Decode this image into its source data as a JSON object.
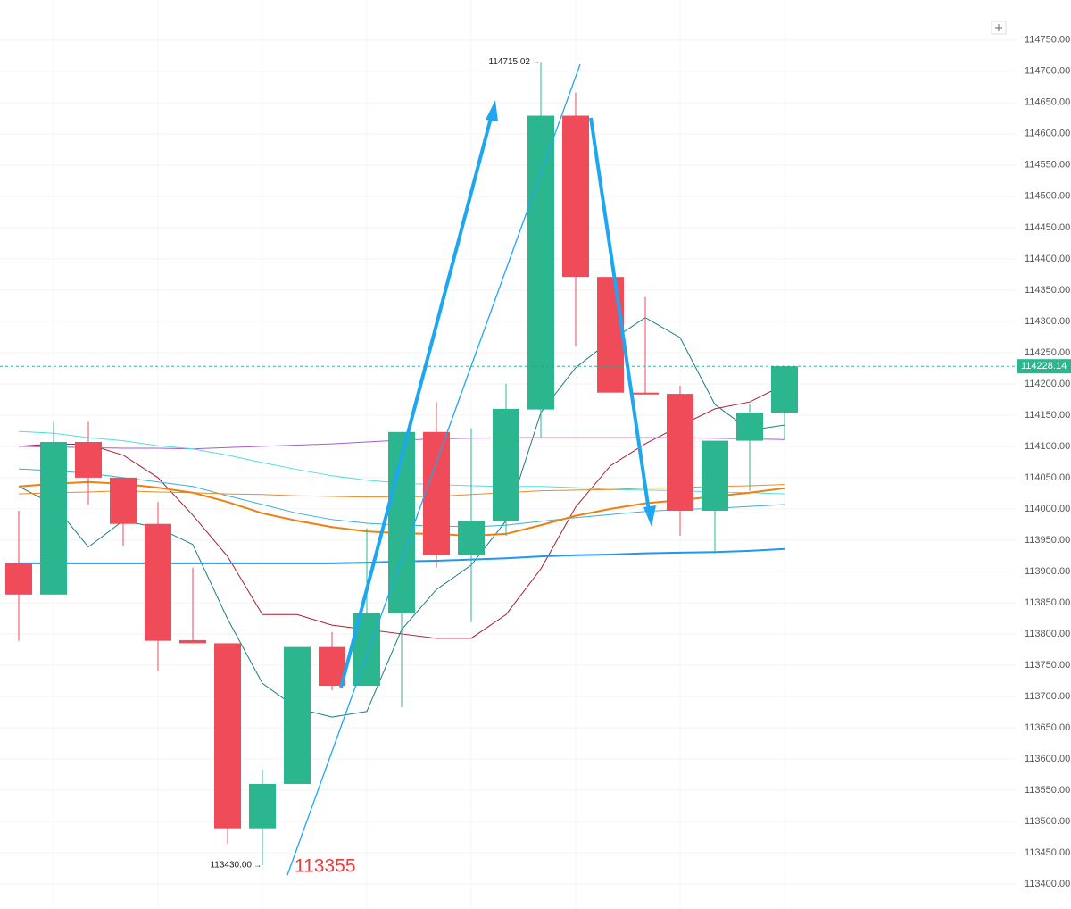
{
  "chart_data": {
    "type": "candlestick",
    "open": [
      113913,
      113863,
      114107,
      114050,
      113976,
      113790,
      113785,
      113489,
      113560,
      113779,
      113717,
      113833,
      114123,
      113926,
      113980,
      114159,
      114629,
      114371,
      114186,
      114184,
      113997,
      114109,
      114154
    ],
    "high": [
      113997,
      114139,
      114139,
      114050,
      114011,
      113906,
      113785,
      113583,
      113779,
      113803,
      113969,
      114123,
      114171,
      114129,
      114200,
      114715.02,
      114666,
      114371,
      114339,
      114197,
      114109,
      114169,
      114228
    ],
    "low": [
      113789,
      113863,
      114007,
      113941,
      113740,
      113785,
      113464,
      113430,
      113560,
      113710,
      113717,
      113683,
      113906,
      113819,
      113957,
      114114,
      114260,
      114186,
      114183,
      113957,
      113929,
      114029,
      114111
    ],
    "close": [
      113863,
      114107,
      114050,
      113976,
      113789,
      113785,
      113489,
      113560,
      113779,
      113717,
      113833,
      114123,
      113926,
      113980,
      114160,
      114629,
      114371,
      114186,
      114183,
      113997,
      114109,
      114154,
      114228.14
    ],
    "up_color": "#2cb68f",
    "down_color": "#ef4b59",
    "overlays": [
      {
        "color": "#1b7d83",
        "width": 1,
        "values": [
          114036,
          114007,
          113939,
          113981,
          113970,
          113943,
          113824,
          113721,
          113681,
          113667,
          113676,
          113807,
          113871,
          113910,
          113981,
          114154,
          114226,
          114269,
          114306,
          114274,
          114167,
          114126,
          114134
        ]
      },
      {
        "color": "#a61f33",
        "width": 1,
        "values": [
          114100,
          114104,
          114103,
          114086,
          114050,
          113990,
          113924,
          113831,
          113831,
          113814,
          113807,
          113800,
          113793,
          113793,
          113831,
          113904,
          114003,
          114069,
          114104,
          114133,
          114160,
          114171,
          114199
        ]
      },
      {
        "color": "#a35fd3",
        "width": 1,
        "values": [
          114100,
          114099,
          114098,
          114097,
          114097,
          114096,
          114098,
          114100,
          114102,
          114104,
          114107,
          114110,
          114112,
          114113,
          114114,
          114114,
          114114,
          114114,
          114114,
          114114,
          114113,
          114112,
          114111
        ]
      },
      {
        "color": "#4fe0dc",
        "width": 1,
        "values": [
          114124,
          114121,
          114114,
          114109,
          114101,
          114096,
          114086,
          114074,
          114063,
          114053,
          114046,
          114041,
          114039,
          114037,
          114036,
          114036,
          114034,
          114031,
          114030,
          114029,
          114027,
          114026,
          114024
        ]
      },
      {
        "color": "#3aaed8",
        "width": 1,
        "values": [
          114064,
          114061,
          114057,
          114050,
          114043,
          114036,
          114021,
          114007,
          113993,
          113983,
          113977,
          113974,
          113973,
          113971,
          113974,
          113980,
          113986,
          113991,
          113996,
          113999,
          114001,
          114004,
          114007
        ]
      },
      {
        "color": "#ee8a26",
        "width": 1,
        "values": [
          114024,
          114026,
          114027,
          114029,
          114027,
          114026,
          114024,
          114023,
          114021,
          114020,
          114019,
          114019,
          114020,
          114023,
          114026,
          114029,
          114030,
          114031,
          114033,
          114034,
          114036,
          114037,
          114039
        ]
      },
      {
        "color": "#f07f10",
        "width": 2,
        "values": [
          114036,
          114040,
          114043,
          114040,
          114034,
          114026,
          114011,
          113993,
          113981,
          113971,
          113964,
          113961,
          113960,
          113957,
          113960,
          113974,
          113989,
          114000,
          114009,
          114014,
          114020,
          114026,
          114033
        ]
      },
      {
        "color": "#2196f3",
        "width": 2,
        "values": [
          113913,
          113913,
          113913,
          113913,
          113913,
          113913,
          113913,
          113913,
          113913,
          113913,
          113914,
          113916,
          113917,
          113919,
          113921,
          113924,
          113926,
          113927,
          113929,
          113930,
          113931,
          113933,
          113936
        ]
      }
    ],
    "ylim": [
      113360,
      114814
    ],
    "yticks": [
      {
        "value": 113400,
        "label": "113400.00"
      },
      {
        "value": 113450,
        "label": "113450.00"
      },
      {
        "value": 113500,
        "label": "113500.00"
      },
      {
        "value": 113550,
        "label": "113550.00"
      },
      {
        "value": 113600,
        "label": "113600.00"
      },
      {
        "value": 113650,
        "label": "113650.00"
      },
      {
        "value": 113700,
        "label": "113700.00"
      },
      {
        "value": 113750,
        "label": "113750.00"
      },
      {
        "value": 113800,
        "label": "113800.00"
      },
      {
        "value": 113850,
        "label": "113850.00"
      },
      {
        "value": 113900,
        "label": "113900.00"
      },
      {
        "value": 113950,
        "label": "113950.00"
      },
      {
        "value": 114000,
        "label": "114000.00"
      },
      {
        "value": 114050,
        "label": "114050.00"
      },
      {
        "value": 114100,
        "label": "114100.00"
      },
      {
        "value": 114150,
        "label": "114150.00"
      },
      {
        "value": 114200,
        "label": "114200.00"
      },
      {
        "value": 114250,
        "label": "114250.00"
      },
      {
        "value": 114300,
        "label": "114300.00"
      },
      {
        "value": 114350,
        "label": "114350.00"
      },
      {
        "value": 114400,
        "label": "114400.00"
      },
      {
        "value": 114450,
        "label": "114450.00"
      },
      {
        "value": 114500,
        "label": "114500.00"
      },
      {
        "value": 114550,
        "label": "114550.00"
      },
      {
        "value": 114600,
        "label": "114600.00"
      },
      {
        "value": 114650,
        "label": "114650.00"
      },
      {
        "value": 114700,
        "label": "114700.00"
      },
      {
        "value": 114750,
        "label": "114750.00"
      }
    ],
    "grid": true,
    "low_label": "113430.00",
    "annotation": "113355"
  }
}
